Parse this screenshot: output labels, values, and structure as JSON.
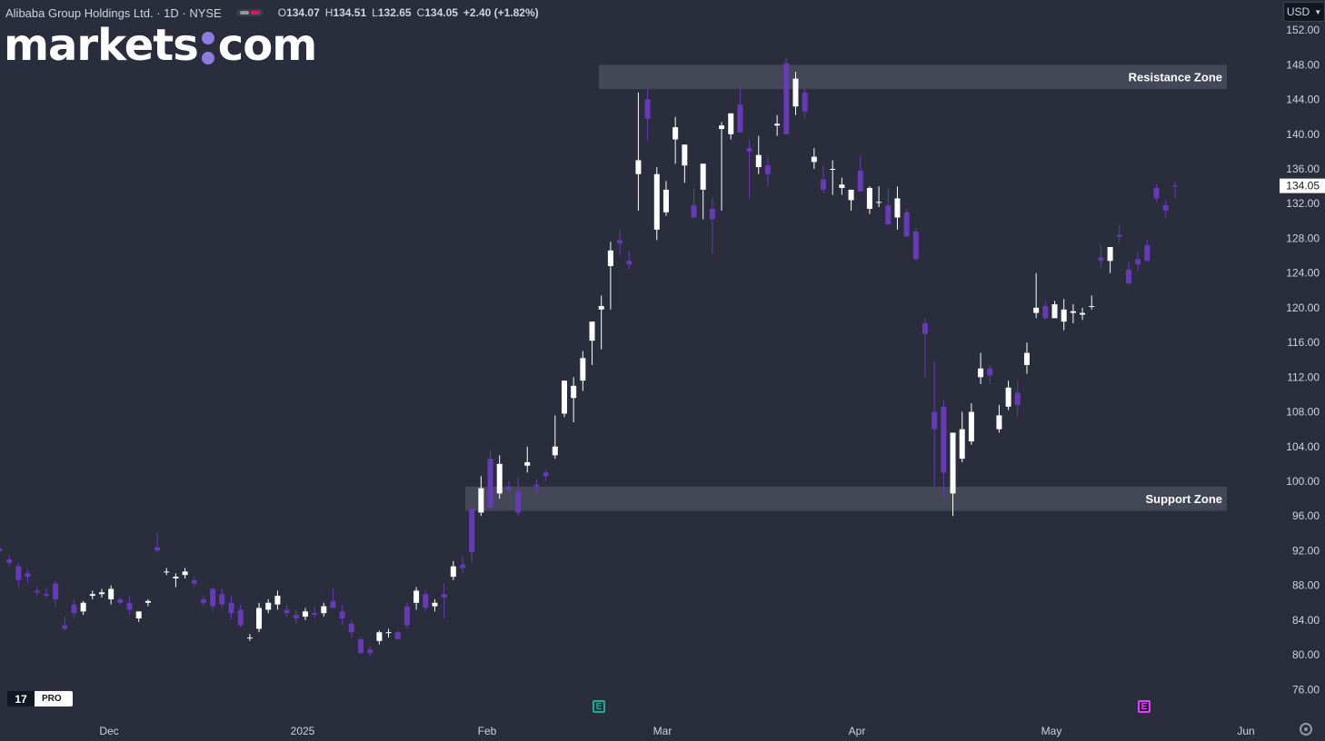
{
  "header": {
    "symbol": "Alibaba Group Holdings Ltd. · 1D · NYSE",
    "ohlc": {
      "o_label": "O",
      "o": "134.07",
      "h_label": "H",
      "h": "134.51",
      "l_label": "L",
      "l": "132.65",
      "c_label": "C",
      "c": "134.05"
    },
    "change": "+2.40 (+1.82%)"
  },
  "logo": {
    "left": "markets",
    "right": "com"
  },
  "currency": "USD",
  "badge": {
    "pro": "PRO"
  },
  "events": [
    {
      "letter": "E",
      "color": "#26a69a"
    },
    {
      "letter": "E",
      "color": "#e040fb"
    }
  ],
  "colors": {
    "up": "#ffffff",
    "down": "#673ab7",
    "background": "#2a2d3b",
    "zone": "#444755",
    "axis_text": "#d1d4dc"
  },
  "chart_data": {
    "type": "candlestick",
    "title": "",
    "ylim": [
      73,
      154
    ],
    "y_ticks": [
      "76.00",
      "80.00",
      "84.00",
      "88.00",
      "92.00",
      "96.00",
      "100.00",
      "104.00",
      "108.00",
      "112.00",
      "116.00",
      "120.00",
      "124.00",
      "128.00",
      "132.00",
      "136.00",
      "140.00",
      "144.00",
      "148.00",
      "152.00"
    ],
    "x_labels": [
      "Dec",
      "2025",
      "Feb",
      "Mar",
      "Apr",
      "May",
      "Jun"
    ],
    "last_price": "134.05",
    "zones": [
      {
        "label": "Resistance Zone",
        "low": 145.2,
        "high": 148.0
      },
      {
        "label": "Support Zone",
        "low": 96.6,
        "high": 99.4
      }
    ],
    "candles": [
      [
        92.2,
        92.4,
        91.8,
        92.0
      ],
      [
        91.0,
        91.4,
        90.2,
        90.6
      ],
      [
        90.2,
        90.6,
        87.8,
        88.6
      ],
      [
        89.4,
        89.8,
        88.2,
        89.0
      ],
      [
        87.4,
        87.8,
        86.8,
        87.2
      ],
      [
        87.0,
        87.8,
        86.6,
        86.8
      ],
      [
        88.2,
        88.6,
        85.6,
        86.4
      ],
      [
        83.4,
        84.4,
        82.8,
        83.0
      ],
      [
        85.8,
        86.4,
        84.2,
        84.8
      ],
      [
        85.0,
        86.2,
        84.6,
        86.0
      ],
      [
        86.8,
        87.4,
        86.4,
        87.0
      ],
      [
        87.0,
        87.6,
        86.6,
        87.2
      ],
      [
        86.4,
        88.0,
        85.8,
        87.6
      ],
      [
        86.4,
        86.6,
        85.8,
        86.0
      ],
      [
        86.0,
        86.8,
        84.6,
        85.2
      ],
      [
        84.2,
        85.0,
        83.8,
        85.0
      ],
      [
        86.0,
        86.4,
        85.6,
        86.2
      ],
      [
        92.4,
        94.0,
        91.8,
        92.0
      ],
      [
        89.6,
        90.0,
        89.2,
        89.6
      ],
      [
        88.8,
        89.4,
        87.8,
        89.0
      ],
      [
        89.2,
        90.0,
        88.8,
        89.6
      ],
      [
        88.6,
        89.0,
        87.8,
        88.2
      ],
      [
        86.4,
        86.8,
        85.6,
        86.0
      ],
      [
        87.6,
        87.8,
        85.0,
        85.6
      ],
      [
        87.0,
        87.6,
        85.4,
        85.8
      ],
      [
        86.0,
        86.8,
        84.0,
        84.8
      ],
      [
        85.2,
        85.8,
        83.2,
        83.4
      ],
      [
        82.0,
        82.4,
        81.6,
        82.0
      ],
      [
        83.0,
        86.0,
        82.6,
        85.4
      ],
      [
        85.2,
        86.4,
        84.8,
        86.0
      ],
      [
        85.8,
        87.4,
        85.2,
        86.8
      ],
      [
        85.2,
        85.8,
        84.4,
        84.8
      ],
      [
        84.6,
        85.2,
        83.6,
        84.2
      ],
      [
        84.4,
        85.4,
        84.0,
        85.0
      ],
      [
        84.8,
        85.6,
        84.2,
        84.6
      ],
      [
        84.8,
        86.0,
        84.4,
        85.6
      ],
      [
        86.2,
        87.6,
        85.4,
        85.4
      ],
      [
        85.0,
        85.8,
        83.4,
        84.2
      ],
      [
        83.6,
        84.0,
        82.0,
        82.6
      ],
      [
        81.8,
        82.0,
        80.0,
        80.2
      ],
      [
        80.6,
        81.0,
        79.8,
        80.2
      ],
      [
        81.6,
        82.8,
        81.2,
        82.6
      ],
      [
        82.6,
        83.0,
        82.0,
        82.6
      ],
      [
        82.6,
        82.8,
        81.8,
        81.8
      ],
      [
        85.6,
        86.0,
        83.0,
        83.4
      ],
      [
        86.0,
        87.8,
        85.2,
        87.4
      ],
      [
        87.0,
        87.4,
        85.0,
        85.4
      ],
      [
        85.6,
        86.4,
        85.0,
        86.0
      ],
      [
        87.0,
        88.2,
        84.2,
        86.6
      ],
      [
        89.0,
        90.8,
        88.6,
        90.2
      ],
      [
        90.4,
        91.4,
        89.4,
        90.0
      ],
      [
        96.8,
        97.0,
        90.6,
        91.8
      ],
      [
        96.4,
        100.6,
        96.0,
        99.2
      ],
      [
        102.6,
        103.6,
        96.6,
        97.0
      ],
      [
        98.6,
        103.0,
        98.0,
        102.0
      ],
      [
        99.4,
        100.0,
        98.4,
        99.0
      ],
      [
        98.8,
        100.4,
        96.0,
        96.4
      ],
      [
        101.8,
        104.0,
        101.0,
        102.2
      ],
      [
        99.6,
        100.2,
        98.6,
        99.4
      ],
      [
        101.0,
        101.4,
        100.0,
        100.6
      ],
      [
        103.0,
        107.6,
        102.6,
        104.0
      ],
      [
        107.8,
        111.6,
        107.4,
        111.6
      ],
      [
        109.6,
        112.0,
        106.8,
        111.0
      ],
      [
        111.6,
        115.0,
        110.4,
        114.2
      ],
      [
        116.2,
        117.6,
        113.4,
        118.4
      ],
      [
        119.8,
        121.4,
        115.2,
        120.2
      ],
      [
        124.8,
        127.6,
        119.8,
        126.6
      ],
      [
        127.8,
        129.0,
        126.0,
        127.4
      ],
      [
        125.4,
        126.6,
        124.4,
        125.0
      ],
      [
        135.4,
        144.8,
        131.2,
        137.0
      ],
      [
        144.0,
        145.2,
        139.2,
        141.8
      ],
      [
        129.0,
        136.2,
        127.8,
        135.4
      ],
      [
        131.0,
        134.6,
        130.6,
        133.6
      ],
      [
        139.4,
        142.0,
        136.6,
        140.8
      ],
      [
        136.4,
        138.8,
        134.4,
        138.8
      ],
      [
        131.8,
        133.8,
        130.6,
        130.4
      ],
      [
        133.6,
        136.6,
        130.2,
        136.6
      ],
      [
        131.4,
        132.6,
        126.2,
        130.2
      ],
      [
        140.6,
        141.4,
        131.2,
        141.0
      ],
      [
        140.0,
        142.4,
        139.4,
        142.4
      ],
      [
        143.4,
        145.4,
        140.6,
        140.2
      ],
      [
        138.4,
        139.4,
        132.6,
        138.0
      ],
      [
        136.2,
        139.8,
        135.4,
        137.6
      ],
      [
        136.4,
        137.4,
        134.0,
        135.4
      ],
      [
        141.0,
        142.2,
        139.8,
        141.2
      ],
      [
        148.2,
        148.8,
        140.2,
        140.0
      ],
      [
        143.2,
        147.2,
        142.2,
        146.4
      ],
      [
        144.8,
        145.4,
        141.8,
        142.6
      ],
      [
        136.8,
        138.4,
        136.0,
        137.4
      ],
      [
        134.8,
        136.4,
        133.2,
        133.6
      ],
      [
        136.0,
        137.0,
        133.0,
        136.0
      ],
      [
        133.8,
        135.0,
        133.0,
        134.2
      ],
      [
        132.4,
        133.6,
        131.2,
        133.6
      ],
      [
        135.8,
        137.6,
        133.4,
        133.4
      ],
      [
        131.4,
        134.0,
        130.8,
        133.8
      ],
      [
        132.2,
        134.0,
        131.6,
        132.2
      ],
      [
        131.8,
        133.8,
        129.8,
        129.6
      ],
      [
        130.4,
        134.0,
        129.0,
        132.6
      ],
      [
        131.0,
        131.4,
        128.4,
        128.2
      ],
      [
        128.8,
        129.2,
        125.4,
        125.6
      ],
      [
        118.2,
        118.8,
        112.0,
        117.0
      ],
      [
        108.0,
        113.8,
        99.4,
        106.0
      ],
      [
        108.6,
        109.4,
        98.0,
        101.0
      ],
      [
        98.6,
        105.0,
        96.0,
        105.6
      ],
      [
        102.6,
        108.0,
        102.2,
        106.0
      ],
      [
        104.6,
        109.0,
        104.2,
        108.0
      ],
      [
        112.0,
        114.8,
        111.2,
        113.0
      ],
      [
        113.0,
        113.4,
        111.2,
        112.2
      ],
      [
        106.0,
        108.8,
        105.6,
        107.6
      ],
      [
        108.6,
        111.6,
        108.2,
        110.8
      ],
      [
        110.2,
        111.6,
        107.4,
        108.8
      ],
      [
        113.4,
        116.0,
        112.4,
        114.8
      ],
      [
        119.4,
        124.0,
        118.8,
        120.0
      ],
      [
        120.2,
        120.8,
        118.6,
        118.8
      ],
      [
        118.8,
        120.8,
        119.0,
        120.4
      ],
      [
        118.4,
        121.0,
        117.4,
        119.8
      ],
      [
        119.4,
        120.4,
        118.2,
        119.6
      ],
      [
        119.2,
        120.0,
        118.6,
        119.4
      ],
      [
        120.2,
        121.4,
        119.8,
        120.2
      ],
      [
        125.8,
        127.2,
        124.6,
        125.4
      ],
      [
        125.4,
        127.0,
        124.0,
        127.0
      ],
      [
        128.4,
        129.6,
        127.4,
        128.2
      ],
      [
        124.4,
        125.4,
        122.6,
        122.8
      ],
      [
        125.6,
        126.4,
        124.2,
        125.0
      ],
      [
        127.2,
        127.8,
        125.4,
        125.4
      ],
      [
        133.8,
        134.2,
        132.2,
        132.6
      ],
      [
        131.8,
        132.4,
        130.4,
        131.2
      ],
      [
        134.07,
        134.51,
        132.65,
        134.05
      ]
    ]
  }
}
